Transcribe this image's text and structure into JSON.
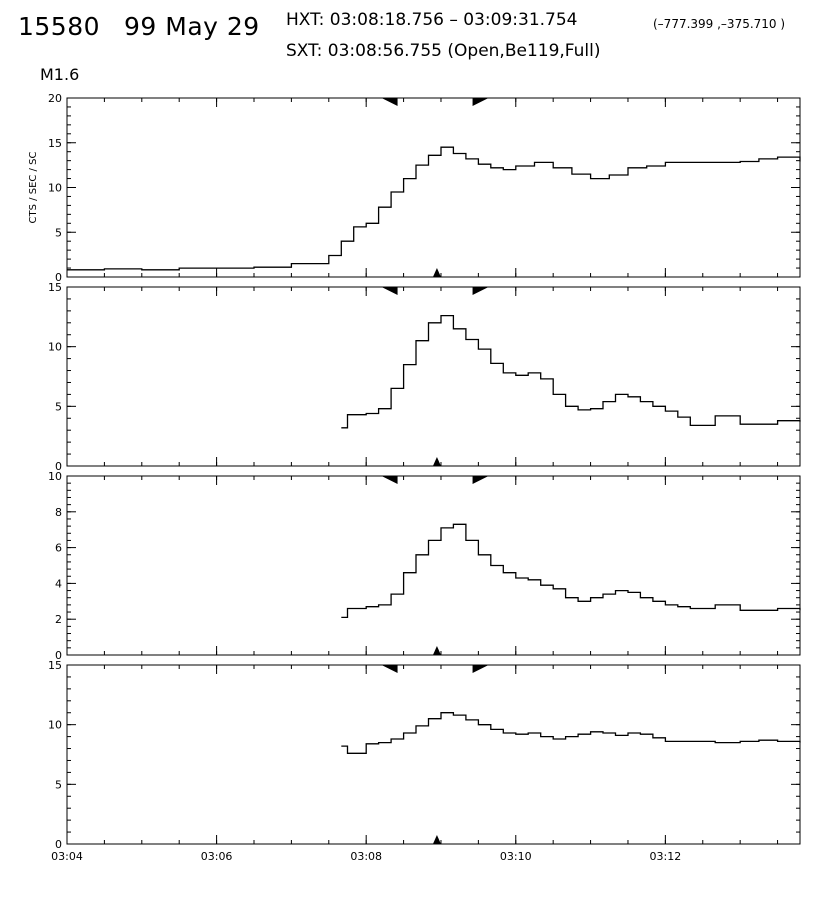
{
  "header": {
    "event_id": "15580",
    "date": "99 May 29",
    "hxt": "HXT: 03:08:18.756 – 03:09:31.754",
    "coords": "(–777.399 ,–375.710 )",
    "sxt": "SXT: 03:08:56.755 (Open,Be119,Full)",
    "goes_class": "M1.6"
  },
  "chart_data": {
    "type": "line",
    "x_ticks": [
      "03:04",
      "03:06",
      "03:08",
      "03:10",
      "03:12"
    ],
    "x_range": [
      "03:04:00",
      "03:13:48"
    ],
    "hxt_interval": [
      "03:08:18.756",
      "03:09:31.754"
    ],
    "sxt_time": "03:08:56.755",
    "ylabel": "CTS / SEC / SC",
    "panels": [
      {
        "ylim": [
          0,
          20
        ],
        "yticks": [
          0,
          5,
          10,
          15,
          20
        ],
        "series": [
          {
            "x": [
              "03:04:00",
              "03:04:30",
              "03:05:00",
              "03:05:30",
              "03:06:00",
              "03:06:30",
              "03:07:00",
              "03:07:30",
              "03:07:40",
              "03:07:50",
              "03:08:00",
              "03:08:10",
              "03:08:20",
              "03:08:30",
              "03:08:40",
              "03:08:50",
              "03:09:00",
              "03:09:10",
              "03:09:20",
              "03:09:30",
              "03:09:40",
              "03:09:50",
              "03:10:00",
              "03:10:15",
              "03:10:30",
              "03:10:45",
              "03:11:00",
              "03:11:15",
              "03:11:30",
              "03:11:45",
              "03:12:00",
              "03:12:15",
              "03:12:30",
              "03:12:45",
              "03:13:00",
              "03:13:15",
              "03:13:30",
              "03:13:48"
            ],
            "y": [
              0.8,
              0.9,
              0.8,
              1.0,
              1.0,
              1.1,
              1.5,
              2.4,
              4.0,
              5.6,
              6.0,
              7.8,
              9.5,
              11.0,
              12.5,
              13.6,
              14.5,
              13.8,
              13.2,
              12.6,
              12.2,
              12.0,
              12.4,
              12.8,
              12.2,
              11.5,
              11.0,
              11.4,
              12.2,
              12.4,
              12.8,
              12.8,
              12.8,
              12.8,
              12.9,
              13.2,
              13.4,
              12.9
            ]
          }
        ]
      },
      {
        "ylim": [
          0,
          15
        ],
        "yticks": [
          0,
          5,
          10,
          15
        ],
        "series": [
          {
            "x": [
              "03:07:40",
              "03:07:45",
              "03:08:00",
              "03:08:10",
              "03:08:20",
              "03:08:30",
              "03:08:40",
              "03:08:50",
              "03:09:00",
              "03:09:10",
              "03:09:20",
              "03:09:30",
              "03:09:40",
              "03:09:50",
              "03:10:00",
              "03:10:10",
              "03:10:20",
              "03:10:30",
              "03:10:40",
              "03:10:50",
              "03:11:00",
              "03:11:10",
              "03:11:20",
              "03:11:30",
              "03:11:40",
              "03:11:50",
              "03:12:00",
              "03:12:10",
              "03:12:20",
              "03:12:30",
              "03:12:40",
              "03:12:50",
              "03:13:00",
              "03:13:15",
              "03:13:30",
              "03:13:48"
            ],
            "y": [
              3.2,
              4.3,
              4.4,
              4.8,
              6.5,
              8.5,
              10.5,
              12.0,
              12.6,
              11.5,
              10.6,
              9.8,
              8.6,
              7.8,
              7.6,
              7.8,
              7.3,
              6.0,
              5.0,
              4.7,
              4.8,
              5.4,
              6.0,
              5.8,
              5.4,
              5.0,
              4.6,
              4.1,
              3.4,
              3.4,
              4.2,
              4.2,
              3.5,
              3.5,
              3.8,
              3.7
            ]
          }
        ]
      },
      {
        "ylim": [
          0,
          10
        ],
        "yticks": [
          0,
          2,
          4,
          6,
          8,
          10
        ],
        "series": [
          {
            "x": [
              "03:07:40",
              "03:07:45",
              "03:08:00",
              "03:08:10",
              "03:08:20",
              "03:08:30",
              "03:08:40",
              "03:08:50",
              "03:09:00",
              "03:09:10",
              "03:09:20",
              "03:09:30",
              "03:09:40",
              "03:09:50",
              "03:10:00",
              "03:10:10",
              "03:10:20",
              "03:10:30",
              "03:10:40",
              "03:10:50",
              "03:11:00",
              "03:11:10",
              "03:11:20",
              "03:11:30",
              "03:11:40",
              "03:11:50",
              "03:12:00",
              "03:12:10",
              "03:12:20",
              "03:12:30",
              "03:12:40",
              "03:12:50",
              "03:13:00",
              "03:13:15",
              "03:13:30",
              "03:13:48"
            ],
            "y": [
              2.1,
              2.6,
              2.7,
              2.8,
              3.4,
              4.6,
              5.6,
              6.4,
              7.1,
              7.3,
              6.4,
              5.6,
              5.0,
              4.6,
              4.3,
              4.2,
              3.9,
              3.7,
              3.2,
              3.0,
              3.2,
              3.4,
              3.6,
              3.5,
              3.2,
              3.0,
              2.8,
              2.7,
              2.6,
              2.6,
              2.8,
              2.8,
              2.5,
              2.5,
              2.6,
              2.5
            ]
          }
        ]
      },
      {
        "ylim": [
          0,
          15
        ],
        "yticks": [
          0,
          5,
          10,
          15
        ],
        "series": [
          {
            "x": [
              "03:07:40",
              "03:07:45",
              "03:07:55",
              "03:08:00",
              "03:08:10",
              "03:08:20",
              "03:08:30",
              "03:08:40",
              "03:08:50",
              "03:09:00",
              "03:09:10",
              "03:09:20",
              "03:09:30",
              "03:09:40",
              "03:09:50",
              "03:10:00",
              "03:10:10",
              "03:10:20",
              "03:10:30",
              "03:10:40",
              "03:10:50",
              "03:11:00",
              "03:11:10",
              "03:11:20",
              "03:11:30",
              "03:11:40",
              "03:11:50",
              "03:12:00",
              "03:12:10",
              "03:12:20",
              "03:12:30",
              "03:12:40",
              "03:12:50",
              "03:13:00",
              "03:13:15",
              "03:13:30",
              "03:13:48"
            ],
            "y": [
              8.2,
              7.6,
              7.6,
              8.4,
              8.5,
              8.8,
              9.3,
              9.9,
              10.5,
              11.0,
              10.8,
              10.4,
              10.0,
              9.6,
              9.3,
              9.2,
              9.3,
              9.0,
              8.8,
              9.0,
              9.2,
              9.4,
              9.3,
              9.1,
              9.3,
              9.2,
              8.9,
              8.6,
              8.6,
              8.6,
              8.6,
              8.5,
              8.5,
              8.6,
              8.7,
              8.6,
              8.5
            ]
          }
        ]
      }
    ]
  }
}
